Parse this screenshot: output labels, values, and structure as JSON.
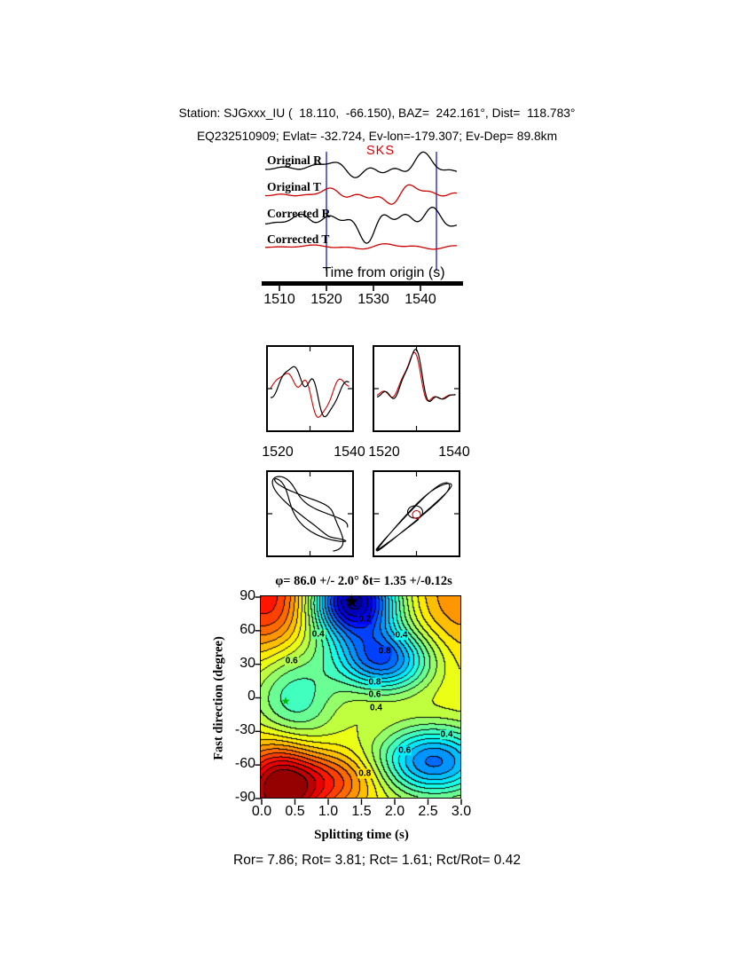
{
  "header": {
    "line1": "Station: SJGxxx_IU (  18.110,  -66.150), BAZ=  242.161°, Dist=  118.783°",
    "line2": "EQ232510909; Evlat= -32.724, Ev-lon=-179.307; Ev-Dep= 89.8km"
  },
  "waveforms": {
    "phase_label": "SKS",
    "trace_labels": [
      "Original R",
      "Original T",
      "Corrected R",
      "Corrected T"
    ],
    "trace_colors": [
      "#000000",
      "#cc0000",
      "#000000",
      "#cc0000"
    ],
    "axis_label": "Time from origin (s)",
    "ticks": [
      "1510",
      "1520",
      "1530",
      "1540"
    ],
    "window_marker_color": "#4444cc"
  },
  "mid_panels": {
    "left_ticks": [
      "1520",
      "1540"
    ],
    "right_ticks": [
      "1520",
      "1540"
    ]
  },
  "contour": {
    "title": "φ= 86.0 +/- 2.0°  δt= 1.35 +/-0.12s",
    "xlabel": "Splitting time (s)",
    "ylabel": "Fast direction (degree)",
    "xticks": [
      "0.0",
      "0.5",
      "1.0",
      "1.5",
      "2.0",
      "2.5",
      "3.0"
    ],
    "yticks": [
      "90",
      "60",
      "30",
      "0",
      "-30",
      "-60",
      "-90"
    ],
    "inline_labels": [
      {
        "text": "0.2",
        "dt": 1.55,
        "phi": 70
      },
      {
        "text": "0.4",
        "dt": 0.85,
        "phi": 57
      },
      {
        "text": "0.4",
        "dt": 2.1,
        "phi": 56
      },
      {
        "text": "0.8",
        "dt": 1.85,
        "phi": 42
      },
      {
        "text": "0.6",
        "dt": 0.45,
        "phi": 33
      },
      {
        "text": "0.8",
        "dt": 1.7,
        "phi": 14
      },
      {
        "text": "0.6",
        "dt": 1.7,
        "phi": 3
      },
      {
        "text": "0.4",
        "dt": 1.72,
        "phi": -9
      },
      {
        "text": "0.4",
        "dt": 2.78,
        "phi": -33
      },
      {
        "text": "0.6",
        "dt": 2.15,
        "phi": -47
      },
      {
        "text": "0.8",
        "dt": 1.55,
        "phi": -68
      }
    ],
    "best_fit_marker": {
      "dt": 1.35,
      "phi": 86.0,
      "color": "#000000"
    },
    "secondary_marker": {
      "dt": 0.36,
      "phi": -3,
      "color": "#00bb00"
    }
  },
  "footer": {
    "stats": "Ror= 7.86; Rot= 3.81; Rct= 1.61; Rct/Rot= 0.42"
  },
  "chart_data": {
    "type": "composite",
    "figure": "SKS shear-wave splitting measurement diagnostic plot",
    "panels": [
      {
        "name": "seismogram-traces",
        "type": "line",
        "series": [
          "Original R",
          "Original T",
          "Corrected R",
          "Corrected T"
        ],
        "series_colors": [
          "black",
          "red",
          "black",
          "red"
        ],
        "xlabel": "Time from origin (s)",
        "xticks": [
          1510,
          1520,
          1530,
          1540
        ],
        "phase_marker": "SKS"
      },
      {
        "name": "window-waveforms",
        "type": "line",
        "subpanels": [
          {
            "xticks": [
              1520,
              1540
            ]
          },
          {
            "xticks": [
              1520,
              1540
            ]
          }
        ],
        "description": "R (black) and T (red) components in measurement window, before (left) and after (right) anisotropy correction"
      },
      {
        "name": "particle-motion",
        "type": "scatter",
        "description": "Particle-motion hodograms: elliptical before correction (left), linearized after correction (right)"
      },
      {
        "name": "misfit-surface",
        "type": "heatmap",
        "xlabel": "Splitting time (s)",
        "ylabel": "Fast direction (degree)",
        "xlim": [
          0,
          3
        ],
        "ylim": [
          -90,
          90
        ],
        "xticks": [
          0.0,
          0.5,
          1.0,
          1.5,
          2.0,
          2.5,
          3.0
        ],
        "yticks": [
          90,
          60,
          30,
          0,
          -30,
          -60,
          -90
        ],
        "labeled_contours": [
          0.2,
          0.4,
          0.6,
          0.8
        ],
        "best_fit": {
          "phi_deg": 86.0,
          "phi_err_deg": 2.0,
          "dt_s": 1.35,
          "dt_err_s": 0.12
        }
      }
    ],
    "results": {
      "phi_deg": 86.0,
      "phi_err_deg": 2.0,
      "dt_s": 1.35,
      "dt_err_s": 0.12,
      "Ror": 7.86,
      "Rot": 3.81,
      "Rct": 1.61,
      "Rct_over_Rot": 0.42
    },
    "station": {
      "code": "SJGxxx_IU",
      "lat": 18.11,
      "lon": -66.15,
      "baz_deg": 242.161,
      "dist_deg": 118.783
    },
    "event": {
      "id": "EQ232510909",
      "ev_lat": -32.724,
      "ev_lon": -179.307,
      "ev_dep_km": 89.8
    }
  }
}
